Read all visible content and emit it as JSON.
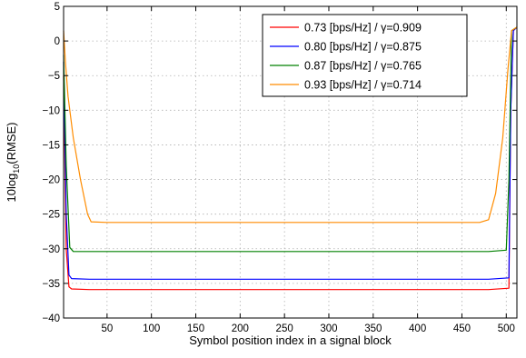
{
  "chart_data": {
    "type": "line",
    "xlabel": "Symbol position index in a signal block",
    "ylabel_parts": [
      "10log",
      "10",
      "(RMSE)"
    ],
    "xlim": [
      1,
      512
    ],
    "ylim": [
      -40,
      5
    ],
    "xticks": [
      50,
      100,
      150,
      200,
      250,
      300,
      350,
      400,
      450,
      500
    ],
    "yticks": [
      -40,
      -35,
      -30,
      -25,
      -20,
      -15,
      -10,
      -5,
      0,
      5
    ],
    "grid": true,
    "legend_position": "top-right",
    "series": [
      {
        "name": "0.73 [bps/Hz] / γ=0.909",
        "color": "#ff0000",
        "x": [
          1,
          4,
          7,
          10,
          30,
          100,
          200,
          300,
          400,
          480,
          503,
          505,
          508,
          512
        ],
        "y": [
          -5,
          -30,
          -35.5,
          -35.8,
          -35.9,
          -35.9,
          -35.9,
          -35.9,
          -35.9,
          -35.9,
          -35.7,
          -10,
          1.5,
          2
        ]
      },
      {
        "name": "0.80 [bps/Hz] / γ=0.875",
        "color": "#0000ff",
        "x": [
          1,
          4,
          7,
          10,
          30,
          100,
          200,
          300,
          400,
          480,
          503,
          505,
          508,
          512
        ],
        "y": [
          -3,
          -25,
          -33.8,
          -34.3,
          -34.4,
          -34.4,
          -34.4,
          -34.4,
          -34.4,
          -34.4,
          -34.2,
          -10,
          1.5,
          2
        ]
      },
      {
        "name": "0.87 [bps/Hz] / γ=0.765",
        "color": "#008000",
        "x": [
          1,
          4,
          8,
          12,
          30,
          100,
          200,
          300,
          400,
          480,
          500,
          503,
          506,
          512
        ],
        "y": [
          -2,
          -18,
          -29.8,
          -30.4,
          -30.4,
          -30.4,
          -30.4,
          -30.4,
          -30.4,
          -30.4,
          -30.2,
          -20,
          1.5,
          2
        ]
      },
      {
        "name": "0.93 [bps/Hz] / γ=0.714",
        "color": "#ff8c00",
        "x": [
          1,
          3,
          6,
          12,
          20,
          28,
          32,
          50,
          100,
          200,
          300,
          400,
          470,
          480,
          488,
          496,
          502,
          506,
          512
        ],
        "y": [
          1.5,
          -3,
          -8,
          -14,
          -20,
          -25,
          -26.1,
          -26.2,
          -26.2,
          -26.2,
          -26.2,
          -26.2,
          -26.2,
          -25.8,
          -22,
          -14,
          -4,
          1.5,
          2
        ]
      }
    ]
  }
}
